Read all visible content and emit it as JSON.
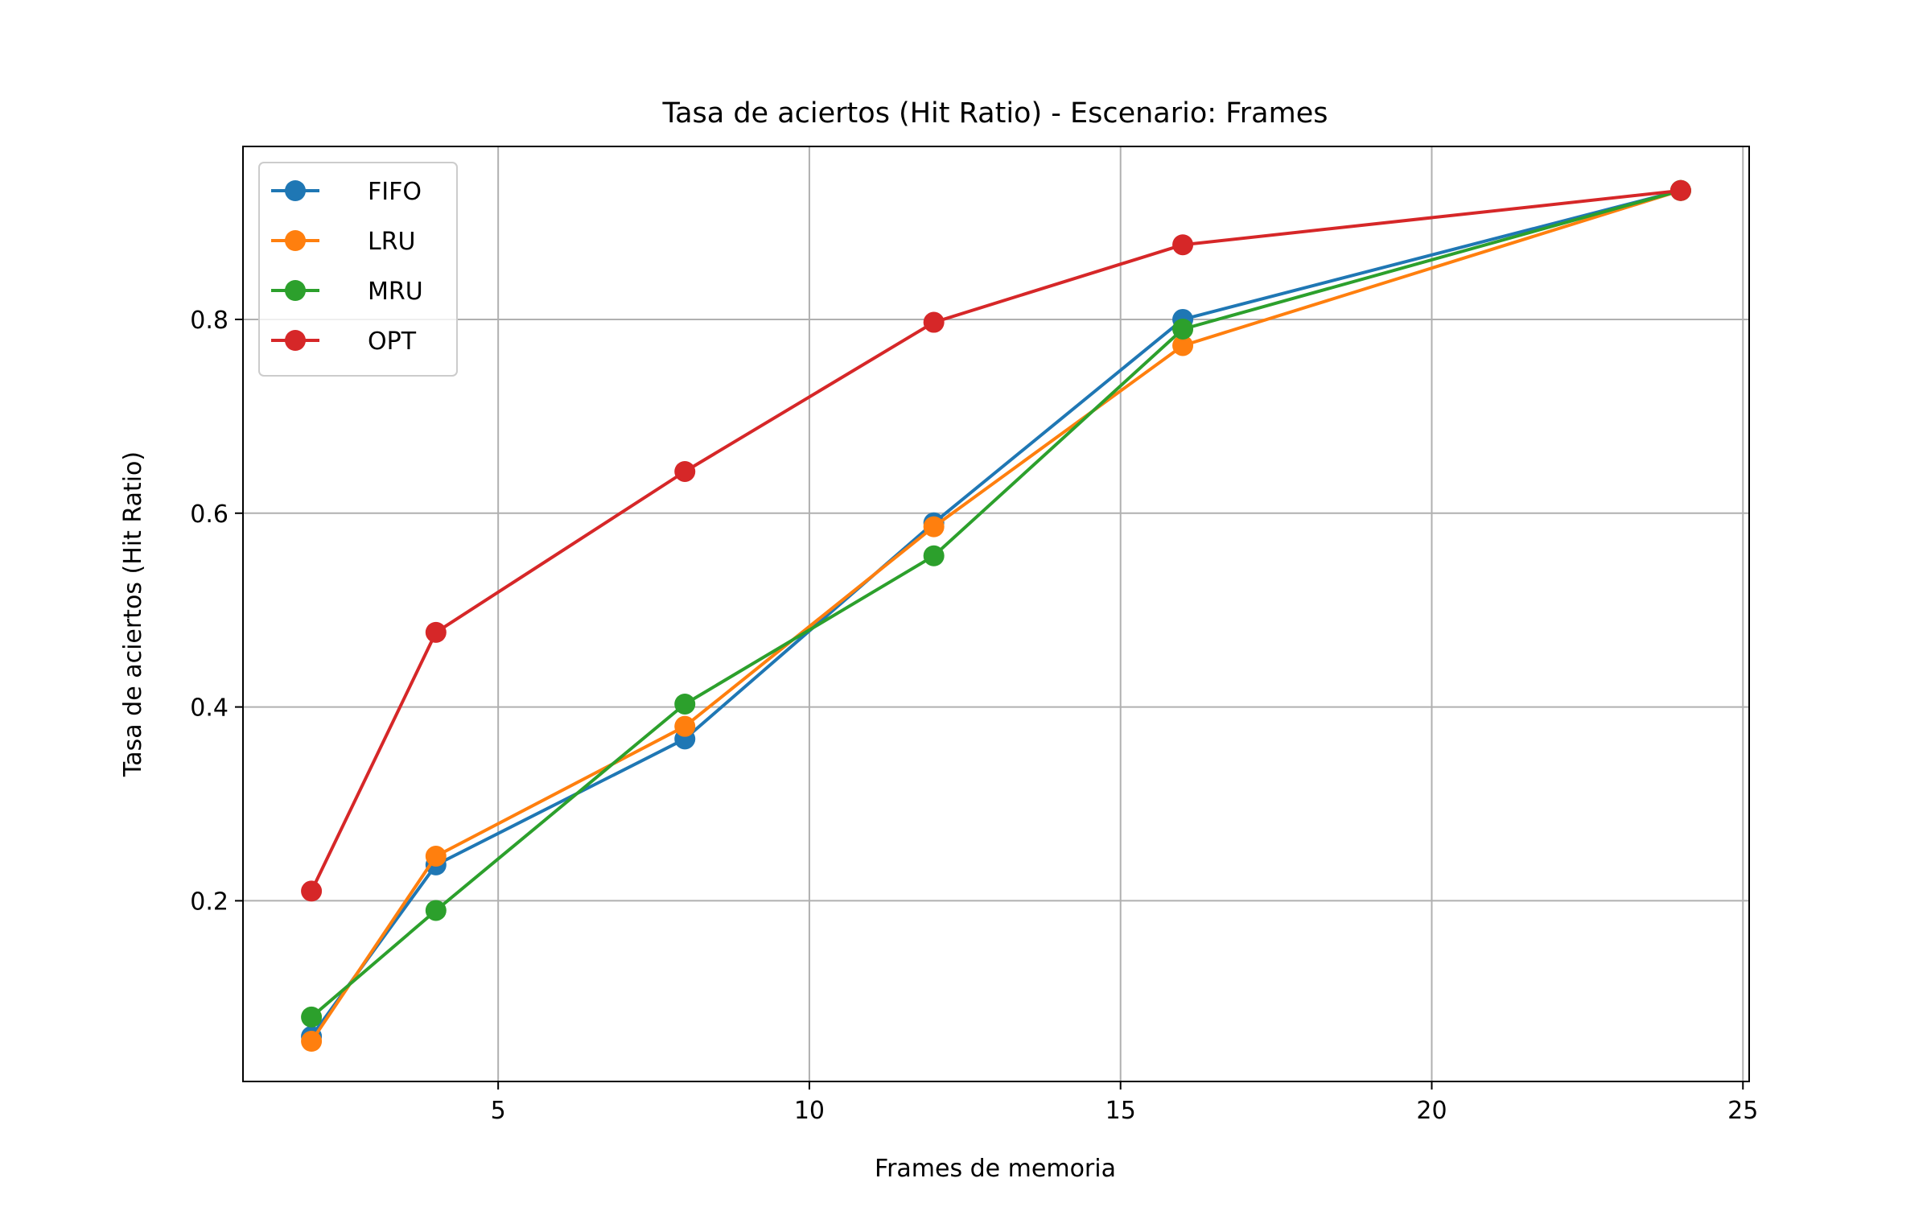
{
  "chart_data": {
    "type": "line",
    "title": "Tasa de aciertos (Hit Ratio) - Escenario: Frames",
    "xlabel": "Frames de memoria",
    "ylabel": "Tasa de aciertos (Hit Ratio)",
    "xlim": [
      0.9,
      25.1
    ],
    "ylim": [
      0.0135,
      0.9785
    ],
    "xticks": [
      5,
      10,
      15,
      20,
      25
    ],
    "xtick_labels": [
      "5",
      "10",
      "15",
      "20",
      "25"
    ],
    "yticks": [
      0.2,
      0.4,
      0.6,
      0.8
    ],
    "ytick_labels": [
      "0.2",
      "0.4",
      "0.6",
      "0.8"
    ],
    "grid": true,
    "legend_position": "top-left",
    "x": [
      2,
      4,
      8,
      12,
      16,
      24
    ],
    "series": [
      {
        "name": "FIFO",
        "color": "#1f77b4",
        "values": [
          0.06,
          0.237,
          0.367,
          0.59,
          0.8,
          0.933
        ]
      },
      {
        "name": "LRU",
        "color": "#ff7f0e",
        "values": [
          0.055,
          0.246,
          0.38,
          0.586,
          0.773,
          0.933
        ]
      },
      {
        "name": "MRU",
        "color": "#2ca02c",
        "values": [
          0.08,
          0.19,
          0.403,
          0.556,
          0.79,
          0.933
        ]
      },
      {
        "name": "OPT",
        "color": "#d62728",
        "values": [
          0.21,
          0.477,
          0.643,
          0.797,
          0.877,
          0.933
        ]
      }
    ]
  }
}
